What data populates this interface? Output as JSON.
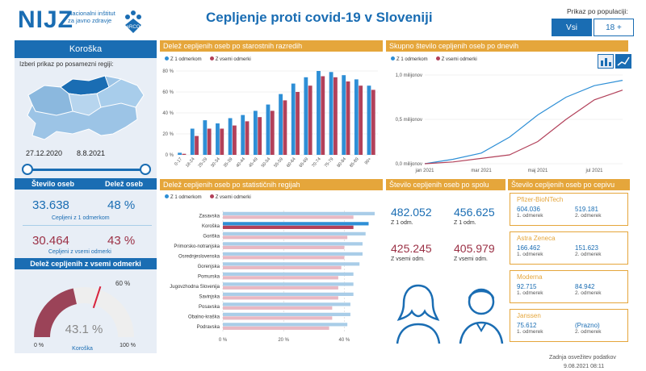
{
  "header": {
    "logo_text": "NIJZ",
    "logo_sub": [
      "Nacionalni inštitut",
      "za javno zdravje"
    ],
    "logo_badge": "eRCO",
    "title": "Cepljenje proti covid-19 v Sloveniji",
    "population_label": "Prikaz po populaciji:",
    "population_options": [
      "Vsi",
      "18 +"
    ]
  },
  "left": {
    "region": "Koroška",
    "hint": "Izberi prikaz po posamezni regiji:",
    "date_from": "27.12.2020",
    "date_to": "8.8.2021",
    "col_count": "Število oseb",
    "col_share": "Delež oseb",
    "first_dose_count": "33.638",
    "first_dose_share": "48 %",
    "first_dose_caption": "Cepljeni z 1 odmerkom",
    "full_count": "30.464",
    "full_share": "43 %",
    "full_caption": "Cepljeni z vsemi odmerki",
    "gauge_title": "Delež cepljenih z vsemi odmerki",
    "gauge_value": "43.1 %",
    "gauge_target": "60 %",
    "gauge_min": "0 %",
    "gauge_max": "100 %",
    "gauge_region": "Koroška"
  },
  "colors": {
    "blue": "#1a6db3",
    "orange": "#e5a63b",
    "first_dose": "#2e8fd6",
    "full_dose": "#b2415a",
    "bar_light_blue": "#a9cde8",
    "bar_light_red": "#e8b8c3"
  },
  "sections": {
    "age": "Delež cepljenih oseb po starostnih razredih",
    "daily": "Skupno število cepljenih oseb po dnevih",
    "regions": "Delež cepljenih oseb po statističnih regijah",
    "sex": "Število cepljenih oseb po spolu",
    "vaccine": "Število cepljenih oseb po cepivu"
  },
  "legend": {
    "first": "Z 1 odmerkom",
    "all": "Z vsemi odmerki"
  },
  "sex": {
    "f_first": "482.052",
    "m_first": "456.625",
    "first_caption": "Z 1 odm.",
    "f_full": "425.245",
    "m_full": "405.979",
    "full_caption": "Z vsemi odm."
  },
  "vaccines": [
    {
      "name": "Pfizer-BioNTech",
      "v1": "604.036",
      "v2": "519.181",
      "c1": "1. odmerek",
      "c2": "2. odmerek"
    },
    {
      "name": "Astra Zeneca",
      "v1": "166.462",
      "v2": "151.623",
      "c1": "1. odmerek",
      "c2": "2. odmerek"
    },
    {
      "name": "Moderna",
      "v1": "92.715",
      "v2": "84.942",
      "c1": "1. odmerek",
      "c2": "2. odmerek"
    },
    {
      "name": "Janssen",
      "v1": "75.612",
      "v2": "(Prazno)",
      "c1": "1. odmerek",
      "c2": "2. odmerek"
    }
  ],
  "footer": {
    "label": "Zadnja osvežitev podatkov",
    "value": "9.08.2021 08:11"
  },
  "chart_data": [
    {
      "type": "bar",
      "title": "Delež cepljenih oseb po starostnih razredih",
      "categories": [
        "0-17",
        "18-24",
        "25-29",
        "30-34",
        "35-39",
        "40-44",
        "45-49",
        "50-54",
        "55-59",
        "60-64",
        "65-69",
        "70-74",
        "75-79",
        "80-84",
        "85-89",
        "90+"
      ],
      "series": [
        {
          "name": "Z 1 odmerkom",
          "values": [
            2,
            25,
            33,
            30,
            35,
            38,
            42,
            48,
            58,
            68,
            74,
            80,
            79,
            76,
            72,
            66
          ]
        },
        {
          "name": "Z vsemi odmerki",
          "values": [
            1,
            18,
            25,
            25,
            28,
            32,
            36,
            42,
            52,
            60,
            66,
            75,
            74,
            70,
            66,
            62
          ]
        }
      ],
      "yticks": [
        "0 %",
        "20 %",
        "40 %",
        "60 %",
        "80 %"
      ],
      "ylim": [
        0,
        80
      ]
    },
    {
      "type": "line",
      "title": "Skupno število cepljenih oseb po dnevih",
      "x": [
        "jan 2021",
        "feb 2021",
        "mar 2021",
        "apr 2021",
        "maj 2021",
        "jun 2021",
        "jul 2021",
        "avg 2021"
      ],
      "x_ticks": [
        "jan 2021",
        "mar 2021",
        "maj 2021",
        "jul 2021"
      ],
      "yticks": [
        "0,0 milijonov",
        "0,5 milijonov",
        "1,0 milijonov"
      ],
      "ylim": [
        0,
        1.0
      ],
      "series": [
        {
          "name": "Z 1 odmerkom",
          "values": [
            0.0,
            0.05,
            0.12,
            0.3,
            0.55,
            0.75,
            0.88,
            0.94
          ]
        },
        {
          "name": "Z vsemi odmerki",
          "values": [
            0.0,
            0.02,
            0.06,
            0.1,
            0.25,
            0.5,
            0.72,
            0.83
          ]
        }
      ]
    },
    {
      "type": "bar",
      "title": "Delež cepljenih oseb po statističnih regijah",
      "categories": [
        "Zasavska",
        "Koroška",
        "Goriška",
        "Primorsko-notranjska",
        "Osrednjeslovenska",
        "Gorenjska",
        "Pomurska",
        "Jugovzhodna Slovenija",
        "Savinjska",
        "Posavska",
        "Obalno-kraška",
        "Podravska"
      ],
      "series": [
        {
          "name": "Z 1 odmerkom",
          "values": [
            50,
            48,
            47,
            46,
            46,
            45,
            43,
            43,
            43,
            42,
            42,
            41
          ]
        },
        {
          "name": "Z vsemi odmerki",
          "values": [
            43,
            43,
            41,
            40,
            40,
            39,
            38,
            38,
            38,
            36,
            36,
            35
          ]
        }
      ],
      "highlight": "Koroška",
      "xticks": [
        "0 %",
        "20 %",
        "40 %"
      ],
      "xlim": [
        0,
        50
      ]
    }
  ]
}
